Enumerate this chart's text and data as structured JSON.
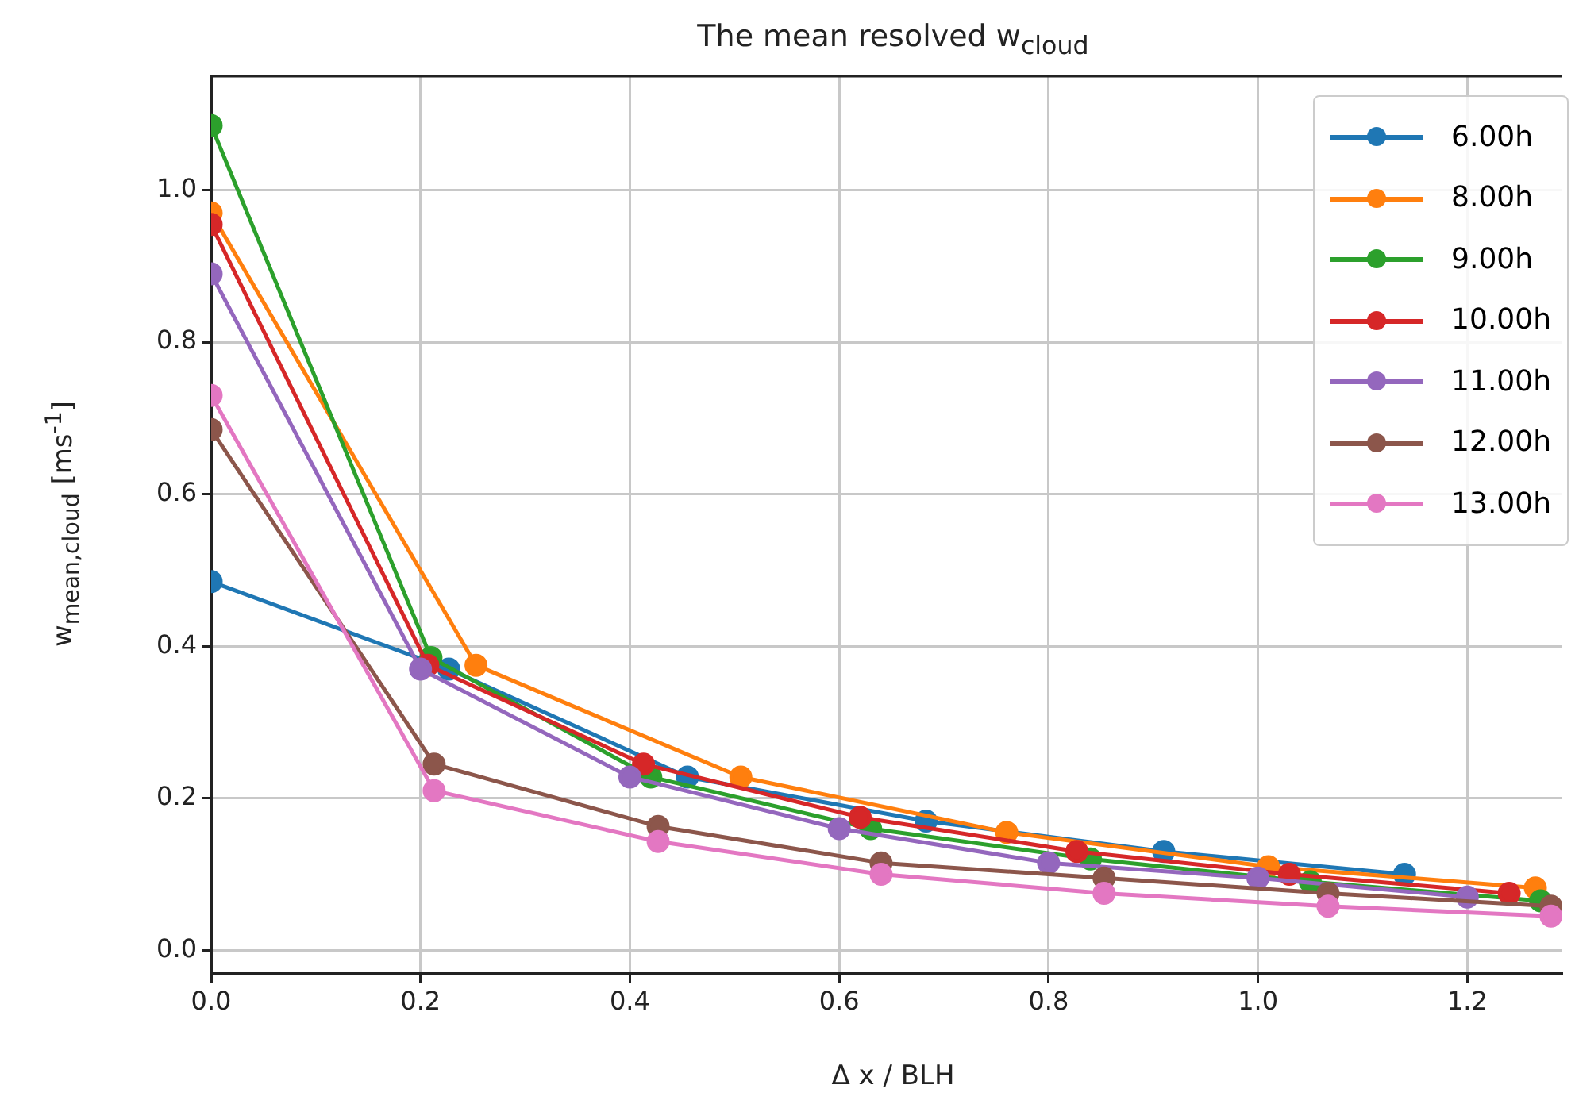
{
  "chart_data": {
    "type": "line",
    "title": "The mean resolved w$_{cloud}$",
    "xlabel": "Δ x / BLH",
    "ylabel": "w$_{mean,cloud}$ [ms$^{-1}$]",
    "xlim": [
      0,
      1.29
    ],
    "xticks": [
      {
        "value": 0,
        "label": "0.0"
      },
      {
        "value": 0.2,
        "label": "0.2"
      },
      {
        "value": 0.4,
        "label": "0.4"
      },
      {
        "value": 0.6,
        "label": "0.6"
      },
      {
        "value": 0.8,
        "label": "0.8"
      },
      {
        "value": 1,
        "label": "1.0"
      },
      {
        "value": 1.2,
        "label": "1.2"
      }
    ],
    "ylim": [
      -0.03,
      1.15
    ],
    "yticks": [
      {
        "value": 0,
        "label": "0.0"
      },
      {
        "value": 0.2,
        "label": "0.2"
      },
      {
        "value": 0.4,
        "label": "0.4"
      },
      {
        "value": 0.6,
        "label": "0.6"
      },
      {
        "value": 0.8,
        "label": "0.8"
      },
      {
        "value": 1,
        "label": "1.0"
      }
    ],
    "grid": true,
    "legend": "top right",
    "marker": "circle",
    "line_style": "solid",
    "series": [
      {
        "name": "6.00h",
        "color": "#1f77b4",
        "x": [
          0,
          0.227,
          0.455,
          0.683,
          0.91,
          1.14
        ],
        "values": [
          0.485,
          0.37,
          0.228,
          0.17,
          0.13,
          0.1
        ]
      },
      {
        "name": "8.00h",
        "color": "#ff7f0e",
        "x": [
          0,
          0.253,
          0.506,
          0.76,
          1.01,
          1.265
        ],
        "values": [
          0.97,
          0.375,
          0.228,
          0.155,
          0.11,
          0.082
        ]
      },
      {
        "name": "9.00h",
        "color": "#2ca02c",
        "x": [
          0,
          0.21,
          0.42,
          0.63,
          0.84,
          1.05,
          1.27
        ],
        "values": [
          1.085,
          0.385,
          0.228,
          0.16,
          0.12,
          0.09,
          0.065
        ]
      },
      {
        "name": "10.00h",
        "color": "#d62728",
        "x": [
          0,
          0.207,
          0.413,
          0.62,
          0.827,
          1.03,
          1.24
        ],
        "values": [
          0.955,
          0.375,
          0.245,
          0.175,
          0.13,
          0.1,
          0.075
        ]
      },
      {
        "name": "11.00h",
        "color": "#9467bd",
        "x": [
          0,
          0.2,
          0.4,
          0.6,
          0.8,
          1.0,
          1.2
        ],
        "values": [
          0.89,
          0.37,
          0.228,
          0.16,
          0.115,
          0.095,
          0.07
        ]
      },
      {
        "name": "12.00h",
        "color": "#8c564b",
        "x": [
          0,
          0.213,
          0.427,
          0.64,
          0.853,
          1.067,
          1.28
        ],
        "values": [
          0.685,
          0.245,
          0.163,
          0.115,
          0.095,
          0.075,
          0.058
        ]
      },
      {
        "name": "13.00h",
        "color": "#e377c2",
        "x": [
          0,
          0.213,
          0.427,
          0.64,
          0.853,
          1.067,
          1.28
        ],
        "values": [
          0.73,
          0.21,
          0.143,
          0.1,
          0.075,
          0.058,
          0.045
        ]
      }
    ]
  }
}
